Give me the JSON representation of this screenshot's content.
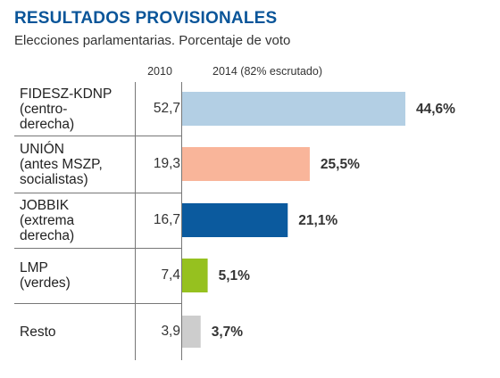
{
  "chart_data": {
    "type": "bar",
    "title": "RESULTADOS PROVISIONALES",
    "subtitle": "Elecciones parlamentarias. Porcentaje de voto",
    "column_2010": "2010",
    "column_2014": "2014 (82% escrutado)",
    "categories": [
      "FIDESZ-KDNP\n(centro-\nderecha)",
      "UNIÓN\n(antes MSZP,\nsocialistas)",
      "JOBBIK\n(extrema\nderecha)",
      "LMP\n(verdes)",
      "Resto"
    ],
    "values_2010": [
      "52,7",
      "19,3",
      "16,7",
      "7,4",
      "3,9"
    ],
    "values": [
      44.6,
      25.5,
      21.1,
      5.1,
      3.7
    ],
    "value_labels": [
      "44,6%",
      "25,5%",
      "21,1%",
      "5,1%",
      "3,7%"
    ],
    "colors": [
      "#b3cfe4",
      "#f9b59a",
      "#0b5a9e",
      "#96c11f",
      "#cdcdcd"
    ],
    "xlim": [
      0,
      50
    ]
  }
}
